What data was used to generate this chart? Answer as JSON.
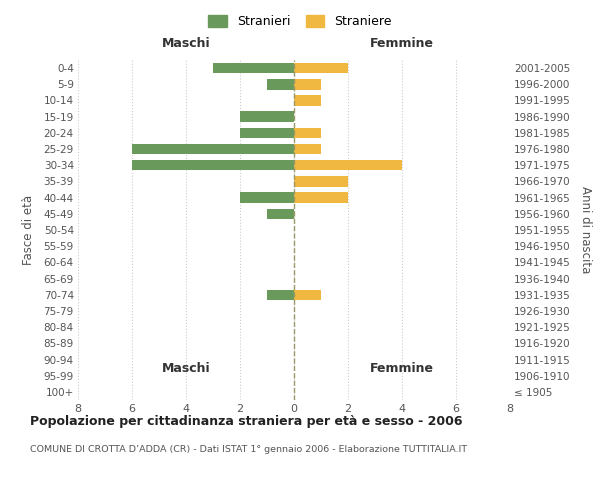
{
  "age_groups": [
    "100+",
    "95-99",
    "90-94",
    "85-89",
    "80-84",
    "75-79",
    "70-74",
    "65-69",
    "60-64",
    "55-59",
    "50-54",
    "45-49",
    "40-44",
    "35-39",
    "30-34",
    "25-29",
    "20-24",
    "15-19",
    "10-14",
    "5-9",
    "0-4"
  ],
  "birth_years": [
    "≤ 1905",
    "1906-1910",
    "1911-1915",
    "1916-1920",
    "1921-1925",
    "1926-1930",
    "1931-1935",
    "1936-1940",
    "1941-1945",
    "1946-1950",
    "1951-1955",
    "1956-1960",
    "1961-1965",
    "1966-1970",
    "1971-1975",
    "1976-1980",
    "1981-1985",
    "1986-1990",
    "1991-1995",
    "1996-2000",
    "2001-2005"
  ],
  "stranieri": [
    0,
    0,
    0,
    0,
    0,
    0,
    1,
    0,
    0,
    0,
    0,
    1,
    2,
    0,
    6,
    6,
    2,
    2,
    0,
    1,
    3
  ],
  "straniere": [
    0,
    0,
    0,
    0,
    0,
    0,
    1,
    0,
    0,
    0,
    0,
    0,
    2,
    2,
    4,
    1,
    1,
    0,
    1,
    1,
    2
  ],
  "color_stranieri": "#6a9a5b",
  "color_straniere": "#f0b840",
  "title": "Popolazione per cittadinanza straniera per età e sesso - 2006",
  "subtitle": "COMUNE DI CROTTA D’ADDA (CR) - Dati ISTAT 1° gennaio 2006 - Elaborazione TUTTITALIA.IT",
  "xlabel_left": "Maschi",
  "xlabel_right": "Femmine",
  "ylabel_left": "Fasce di età",
  "ylabel_right": "Anni di nascita",
  "xlim": 8,
  "legend_stranieri": "Stranieri",
  "legend_straniere": "Straniere",
  "background_color": "#ffffff",
  "grid_color": "#cccccc",
  "spine_color": "#cccccc"
}
